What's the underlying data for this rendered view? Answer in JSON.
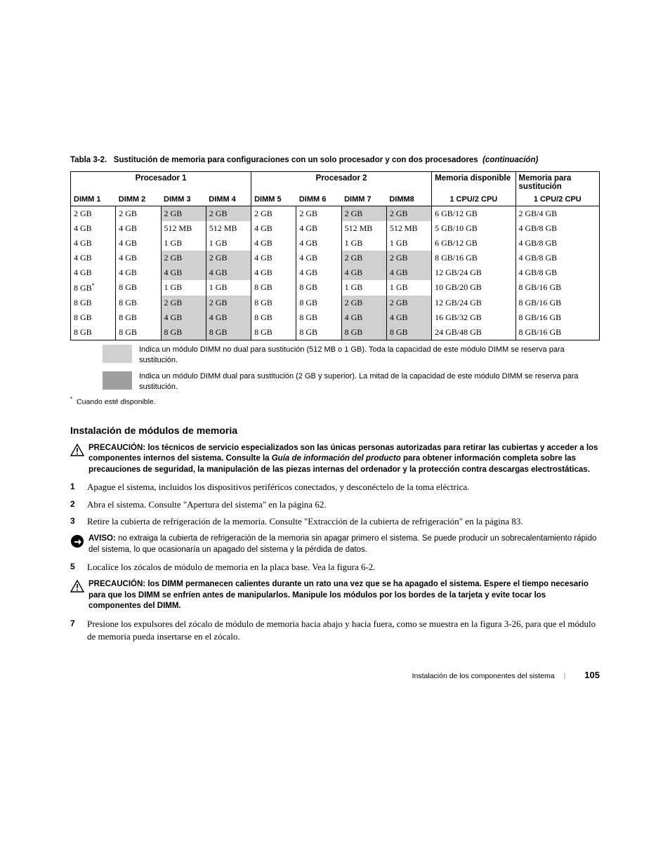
{
  "caption": {
    "prefix": "Tabla 3-2.",
    "text": "Sustitución de memoria para configuraciones con un solo procesador y con dos procesadores",
    "cont": "(continuación)"
  },
  "headers": {
    "proc1": "Procesador 1",
    "proc2": "Procesador 2",
    "mem_avail": "Memoria disponible",
    "mem_sub": "Memoria para sustitución",
    "dimm": [
      "DIMM 1",
      "DIMM 2",
      "DIMM 3",
      "DIMM 4",
      "DIMM 5",
      "DIMM 6",
      "DIMM 7",
      "DIMM8"
    ],
    "cpu": "1 CPU/2 CPU"
  },
  "rows": [
    {
      "c": [
        "2 GB",
        "2 GB",
        "2 GB",
        "2 GB",
        "2 GB",
        "2 GB",
        "2 GB",
        "2 GB",
        "6 GB/12 GB",
        "2 GB/4 GB"
      ],
      "shade": [
        0,
        0,
        1,
        1,
        0,
        0,
        1,
        1,
        0,
        0
      ]
    },
    {
      "c": [
        "4 GB",
        "4 GB",
        "512 MB",
        "512 MB",
        "4 GB",
        "4 GB",
        "512 MB",
        "512 MB",
        "5 GB/10 GB",
        "4 GB/8 GB"
      ],
      "shade": [
        0,
        0,
        0,
        0,
        0,
        0,
        0,
        0,
        0,
        0
      ]
    },
    {
      "c": [
        "4 GB",
        "4 GB",
        "1 GB",
        "1 GB",
        "4 GB",
        "4 GB",
        "1 GB",
        "1 GB",
        "6 GB/12 GB",
        "4 GB/8 GB"
      ],
      "shade": [
        0,
        0,
        0,
        0,
        0,
        0,
        0,
        0,
        0,
        0
      ]
    },
    {
      "c": [
        "4 GB",
        "4 GB",
        "2 GB",
        "2 GB",
        "4 GB",
        "4 GB",
        "2 GB",
        "2 GB",
        "8 GB/16 GB",
        "4 GB/8 GB"
      ],
      "shade": [
        0,
        0,
        1,
        1,
        0,
        0,
        1,
        1,
        0,
        0
      ]
    },
    {
      "c": [
        "4 GB",
        "4 GB",
        "4 GB",
        "4 GB",
        "4 GB",
        "4 GB",
        "4 GB",
        "4 GB",
        "12 GB/24 GB",
        "4 GB/8 GB"
      ],
      "shade": [
        0,
        0,
        1,
        1,
        0,
        0,
        1,
        1,
        0,
        0
      ]
    },
    {
      "c": [
        "8 GB",
        "8 GB",
        "1 GB",
        "1 GB",
        "8 GB",
        "8 GB",
        "1 GB",
        "1 GB",
        "10 GB/20 GB",
        "8 GB/16 GB"
      ],
      "shade": [
        0,
        0,
        0,
        0,
        0,
        0,
        0,
        0,
        0,
        0
      ],
      "star": 1
    },
    {
      "c": [
        "8 GB",
        "8 GB",
        "2 GB",
        "2 GB",
        "8 GB",
        "8 GB",
        "2 GB",
        "2 GB",
        "12 GB/24 GB",
        "8 GB/16 GB"
      ],
      "shade": [
        0,
        0,
        1,
        1,
        0,
        0,
        1,
        1,
        0,
        0
      ]
    },
    {
      "c": [
        "8 GB",
        "8 GB",
        "4 GB",
        "4 GB",
        "8 GB",
        "8 GB",
        "4 GB",
        "4 GB",
        "16 GB/32 GB",
        "8 GB/16 GB"
      ],
      "shade": [
        0,
        0,
        1,
        1,
        0,
        0,
        1,
        1,
        0,
        0
      ]
    },
    {
      "c": [
        "8 GB",
        "8 GB",
        "8 GB",
        "8 GB",
        "8 GB",
        "8 GB",
        "8 GB",
        "8 GB",
        "24 GB/48 GB",
        "8 GB/16 GB"
      ],
      "shade": [
        0,
        0,
        1,
        1,
        0,
        0,
        1,
        1,
        0,
        0
      ]
    }
  ],
  "legend1": "Indica un módulo DIMM no dual para sustitución (512 MB o 1 GB). Toda la capacidad de este módulo DIMM se reserva para sustitución.",
  "legend2": "Indica un módulo DIMM dual para sustitución (2 GB y superior). La mitad de la capacidad de este módulo DIMM se reserva para sustitución.",
  "footnote": "Cuando esté disponible.",
  "section_title": "Instalación de módulos de memoria",
  "precaucion1": {
    "label": "PRECAUCIÓN:",
    "text_a": "los técnicos de servicio especializados son las únicas personas autorizadas para retirar las cubiertas y acceder a los componentes internos del sistema. Consulte la ",
    "italic": "Guía de información del producto",
    "text_b": " para obtener información completa sobre las precauciones de seguridad, la manipulación de las piezas internas del ordenador y la protección contra descargas electrostáticas."
  },
  "steps": {
    "s1": "Apague el sistema, incluidos los dispositivos periféricos conectados, y desconéctelo de la toma eléctrica.",
    "s2": "Abra el sistema. Consulte \"Apertura del sistema\" en la página 62.",
    "s3": "Retire la cubierta de refrigeración de la memoria. Consulte \"Extracción de la cubierta de refrigeración\" en la página 83.",
    "s4": "Localice los zócalos de módulo de memoria en la placa base. Vea la figura 6-2.",
    "s5": "Presione los expulsores del zócalo de módulo de memoria hacia abajo y hacia fuera, como se muestra en la figura 3-26, para que el módulo de memoria pueda insertarse en el zócalo."
  },
  "aviso": {
    "label": "AVISO:",
    "text": "no extraiga la cubierta de refrigeración de la memoria sin apagar primero el sistema. Se puede producir un sobrecalentamiento rápido del sistema, lo que ocasionaría un apagado del sistema y la pérdida de datos."
  },
  "precaucion2": {
    "label": "PRECAUCIÓN:",
    "text": "los DIMM permanecen calientes durante un rato una vez que se ha apagado el sistema. Espere el tiempo necesario para que los DIMM se enfríen antes de manipularlos. Manipule los módulos por los bordes de la tarjeta y evite tocar los componentes del DIMM."
  },
  "footer": {
    "title": "Instalación de los componentes del sistema",
    "page": "105"
  },
  "colors": {
    "shade": "#d0d0d0",
    "shade_dark": "#9e9e9e",
    "text": "#000000",
    "bg": "#ffffff"
  }
}
